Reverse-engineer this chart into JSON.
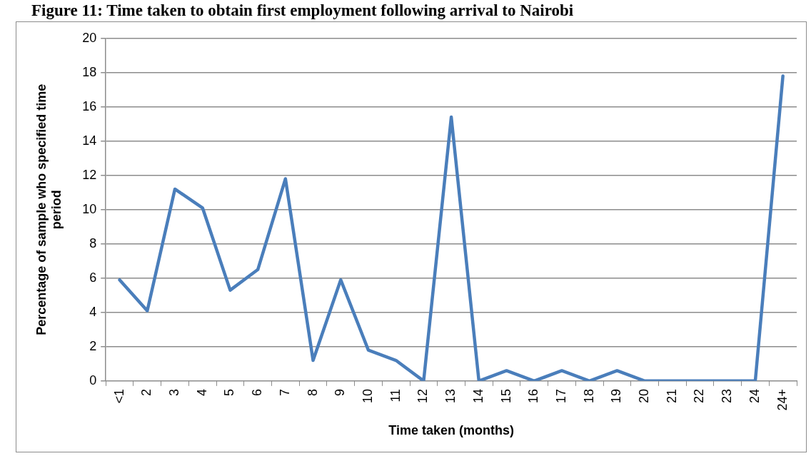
{
  "chart_data": {
    "type": "line",
    "title": "Figure 11: Time taken to obtain first employment following arrival to Nairobi",
    "xlabel": "Time taken (months)",
    "ylabel": "Percentage of sample who specified time period",
    "categories": [
      "<1",
      "2",
      "3",
      "4",
      "5",
      "6",
      "7",
      "8",
      "9",
      "10",
      "11",
      "12",
      "13",
      "14",
      "15",
      "16",
      "17",
      "18",
      "19",
      "20",
      "21",
      "22",
      "23",
      "24",
      "24+"
    ],
    "series": [
      {
        "color": "#4a7ebb",
        "values": [
          5.9,
          4.1,
          11.2,
          10.1,
          5.3,
          6.5,
          11.8,
          1.2,
          5.9,
          1.8,
          1.2,
          0,
          15.4,
          0,
          0.6,
          0,
          0.6,
          0,
          0.6,
          0,
          0,
          0,
          0,
          0,
          17.8
        ]
      }
    ],
    "ylim": [
      0,
      20
    ],
    "yticks": [
      0,
      2,
      4,
      6,
      8,
      10,
      12,
      14,
      16,
      18,
      20
    ],
    "grid": "y",
    "legend": false,
    "marker": "none",
    "line_style": "solid"
  }
}
